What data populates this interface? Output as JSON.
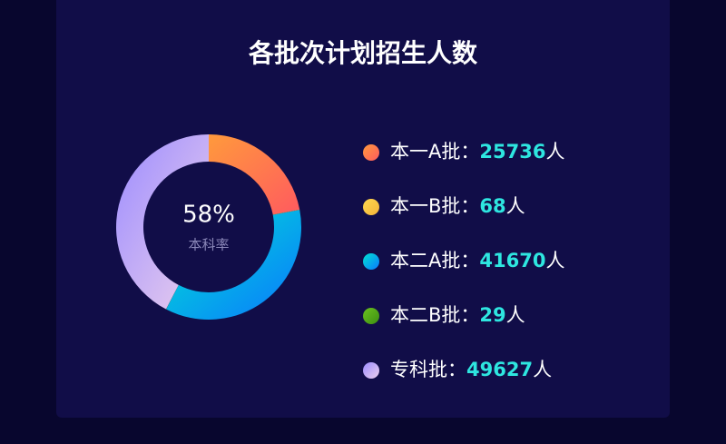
{
  "chart_data": {
    "type": "donut",
    "title": "各批次计划招生人数",
    "center_text": "58%",
    "center_subtext": "本科率",
    "categories": [
      "本一A批",
      "本一B批",
      "本二A批",
      "本二B批",
      "专科批"
    ],
    "values": [
      25736,
      68,
      41670,
      29,
      49627
    ],
    "colors": [
      "#ff9a3c",
      "#ffd84f",
      "#00e3d2",
      "#6bc11f",
      "#9c8cff"
    ],
    "colors_end": [
      "#ff5a5f",
      "#f4b43a",
      "#0a78ff",
      "#3c8f12",
      "#ecd0ec"
    ],
    "legend_separator": "：",
    "unit": "人"
  }
}
